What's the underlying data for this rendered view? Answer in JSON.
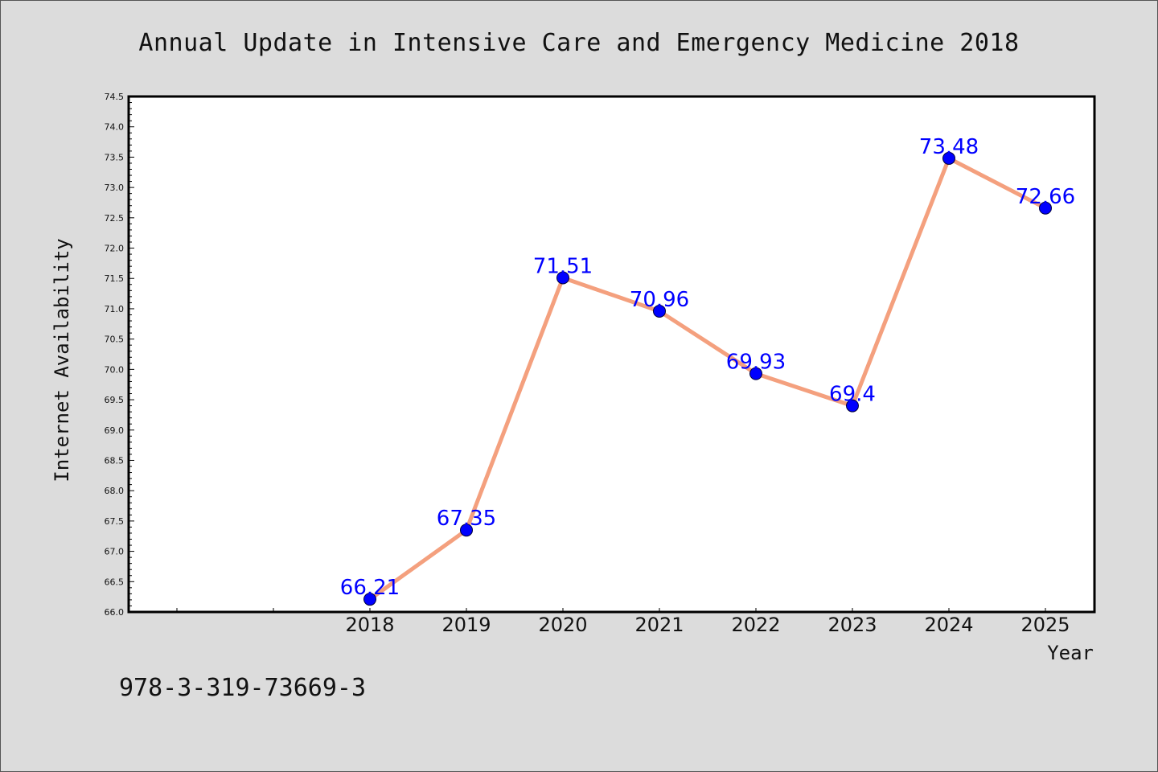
{
  "chart_data": {
    "type": "line",
    "title": "Annual Update in Intensive Care and Emergency Medicine 2018",
    "xlabel": "Year",
    "ylabel": "Internet Availability",
    "x": [
      "2018",
      "2019",
      "2020",
      "2021",
      "2022",
      "2023",
      "2024",
      "2025"
    ],
    "values": [
      66.21,
      67.35,
      71.51,
      70.96,
      69.93,
      69.4,
      73.48,
      72.66
    ],
    "data_labels": [
      "66.21",
      "67.35",
      "71.51",
      "70.96",
      "69.93",
      "69.4",
      "73.48",
      "72.66"
    ],
    "ylim": [
      66.0,
      74.5
    ],
    "yticks": [
      "66.0",
      "66.5",
      "67.0",
      "67.5",
      "68.0",
      "68.5",
      "69.0",
      "69.5",
      "70.0",
      "70.5",
      "71.0",
      "71.5",
      "72.0",
      "72.5",
      "73.0",
      "73.5",
      "74.0",
      "74.5"
    ],
    "line_color": "#f4a07e",
    "marker_color": "#0000ff",
    "label_color": "#0000ff",
    "grid": false,
    "legend": false
  },
  "footer": {
    "isbn": "978-3-319-73669-3"
  }
}
